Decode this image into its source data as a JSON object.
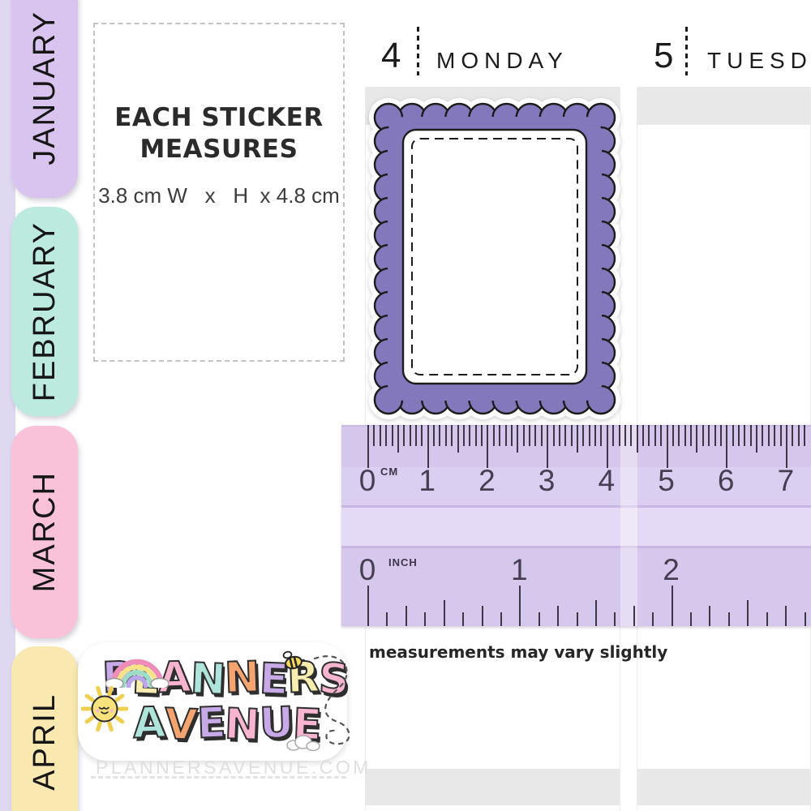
{
  "month_tabs": {
    "strip_color": "#ded8f1",
    "items": [
      {
        "label": "JANUARY",
        "color": "#d9c4ef"
      },
      {
        "label": "FEBRUARY",
        "color": "#bceade"
      },
      {
        "label": "MARCH",
        "color": "#f9c2d8"
      },
      {
        "label": "APRIL",
        "color": "#f9e9b0"
      }
    ]
  },
  "measure_box": {
    "title_line1": "EACH STICKER",
    "title_line2": "MEASURES",
    "dimensions": "3.8 cm W   x   H  x 4.8 cm"
  },
  "planner": {
    "days": [
      {
        "number": "4",
        "name": "MONDAY"
      },
      {
        "number": "5",
        "name": "TUESDAY"
      }
    ]
  },
  "sticker": {
    "shape": "scalloped-frame",
    "fill": "#8478bd",
    "outline": "#1c1c1c",
    "inner": "#ffffff"
  },
  "ruler": {
    "cm_label": "CM",
    "inch_label": "INCH",
    "cm_numbers": [
      "0",
      "1",
      "2",
      "3",
      "4",
      "5",
      "6",
      "7"
    ],
    "inch_numbers": [
      "0",
      "1",
      "2"
    ]
  },
  "footer": {
    "disclaimer": "measurements may vary slightly",
    "website": "PLANNERSAVENUE.COM"
  },
  "logo": {
    "word1": [
      {
        "ch": "P",
        "color": "#c7a9e8"
      },
      {
        "ch": "L",
        "color": "#f7edae"
      },
      {
        "ch": "A",
        "color": "#f9b5cf"
      },
      {
        "ch": "N",
        "color": "#aee4da"
      },
      {
        "ch": "N",
        "color": "#f5a470"
      },
      {
        "ch": "E",
        "color": "#c7a9e8"
      },
      {
        "ch": "R",
        "color": "#f7edae"
      },
      {
        "ch": "S",
        "color": "#f9b5cf"
      }
    ],
    "word2": [
      {
        "ch": "A",
        "color": "#aee4da"
      },
      {
        "ch": "V",
        "color": "#f5a470"
      },
      {
        "ch": "E",
        "color": "#c7a9e8"
      },
      {
        "ch": "N",
        "color": "#f9b5cf"
      },
      {
        "ch": "U",
        "color": "#c7a9e8"
      },
      {
        "ch": "E",
        "color": "#f9b5cf"
      }
    ]
  }
}
